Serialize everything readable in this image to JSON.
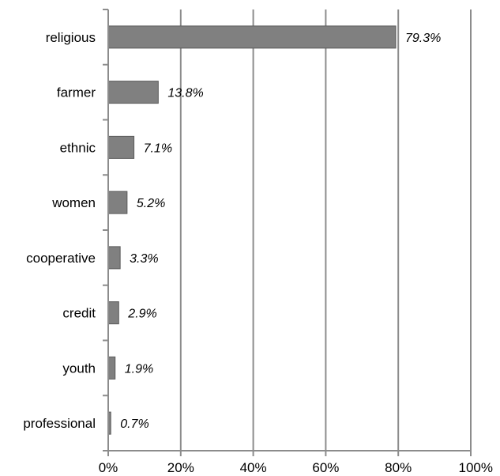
{
  "chart_data": {
    "type": "bar",
    "orientation": "horizontal",
    "title": "",
    "xlabel": "",
    "ylabel": "",
    "categories": [
      "religious",
      "farmer",
      "ethnic",
      "women",
      "cooperative",
      "credit",
      "youth",
      "professional"
    ],
    "values": [
      79.3,
      13.8,
      7.1,
      5.2,
      3.3,
      2.9,
      1.9,
      0.7
    ],
    "value_labels": [
      "79.3%",
      "13.8%",
      "7.1%",
      "5.2%",
      "3.3%",
      "2.9%",
      "1.9%",
      "0.7%"
    ],
    "xlim": [
      0,
      100
    ],
    "xticks": [
      0,
      20,
      40,
      60,
      80,
      100
    ],
    "xtick_labels": [
      "0%",
      "20%",
      "40%",
      "60%",
      "80%",
      "100%"
    ],
    "grid": "vertical",
    "legend": "none",
    "colors": {
      "bar": "#808080",
      "bar_edge": "#5a5a5a",
      "grid": "#8c8c8c",
      "axis": "#8c8c8c"
    }
  }
}
